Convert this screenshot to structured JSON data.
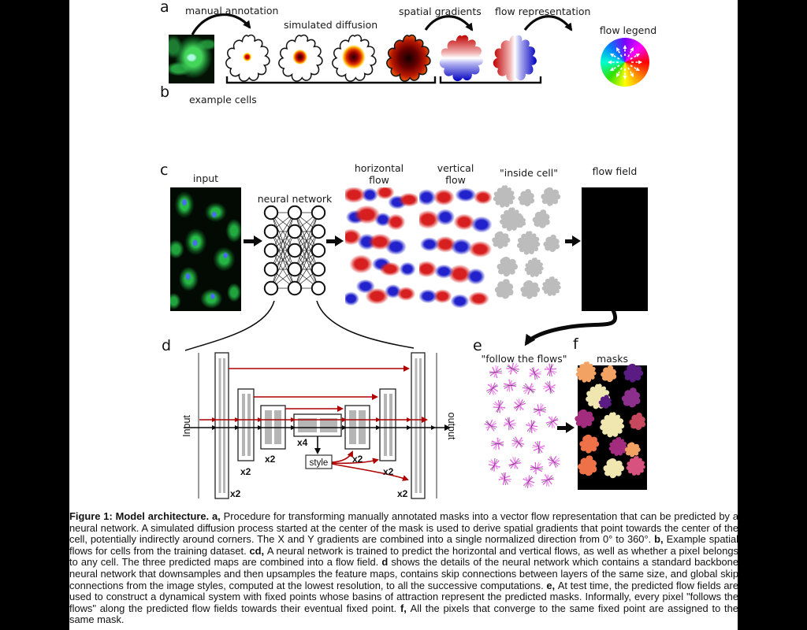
{
  "panels": {
    "a": {
      "label": "a",
      "manual_annotation": "manual annotation",
      "simulated_diffusion": "simulated diffusion",
      "spatial_gradients": "spatial gradients",
      "flow_representation": "flow representation",
      "flow_legend": "flow legend"
    },
    "b": {
      "label": "b",
      "example_cells": "example cells"
    },
    "c": {
      "label": "c",
      "input": "input",
      "neural_network": "neural network",
      "horizontal_flow_line1": "horizontal",
      "horizontal_flow_line2": "flow",
      "vertical_flow_line1": "vertical",
      "vertical_flow_line2": "flow",
      "inside_cell": "\"inside cell\"",
      "flow_field": "flow field"
    },
    "d": {
      "label": "d",
      "input": "Input",
      "output": "output",
      "x2": "x2",
      "x4": "x4",
      "style": "style"
    },
    "e": {
      "label": "e",
      "follow_the_flows": "\"follow the flows\""
    },
    "f": {
      "label": "f",
      "masks": "masks"
    }
  },
  "colors": {
    "letterbox": "#000000",
    "page_background": "#ffffff",
    "skip_connection_red": "#b00000",
    "mask_palette": [
      "#f0e6b0",
      "#f2a263",
      "#ee7147",
      "#8d2f8d",
      "#a42c7e",
      "#5a1c82",
      "#d8527f",
      "#c5485f"
    ]
  },
  "caption": {
    "segments": [
      {
        "text": "Figure 1: Model architecture. ",
        "bold": true
      },
      {
        "text": "a, ",
        "bold": true
      },
      {
        "text": "Procedure for transforming manually annotated masks into a vector flow representation that can be predicted by a neural network. A simulated diffusion process started at the center of the mask is used to derive spatial gradients that point towards the center of the cell, potentially indirectly around corners. The X and Y gradients are combined into a single normalized direction from 0° to 360°. ",
        "bold": false
      },
      {
        "text": "b, ",
        "bold": true
      },
      {
        "text": "Example spatial flows for cells from the training dataset. ",
        "bold": false
      },
      {
        "text": "cd, ",
        "bold": true
      },
      {
        "text": "A neural network is trained to predict the horizontal and vertical flows, as well as whether a pixel belongs to any cell. The three predicted maps are combined into a flow field. ",
        "bold": false
      },
      {
        "text": "d ",
        "bold": true
      },
      {
        "text": "shows the details of the neural network which contains a standard backbone neural network that downsamples and then upsamples the feature maps, contains skip connections between layers of the same size, and global skip connections from the image styles, computed at the lowest resolution, to all the successive computations. ",
        "bold": false
      },
      {
        "text": "e, ",
        "bold": true
      },
      {
        "text": "At test time, the predicted flow fields are used to construct a dynamical system with fixed points whose basins of attraction represent the predicted masks. Informally, every pixel \"follows the flows\" along the predicted flow fields towards their eventual fixed point. ",
        "bold": false
      },
      {
        "text": "f, ",
        "bold": true
      },
      {
        "text": "All the pixels that converge to the same fixed point are assigned to the same mask.",
        "bold": false
      }
    ]
  }
}
